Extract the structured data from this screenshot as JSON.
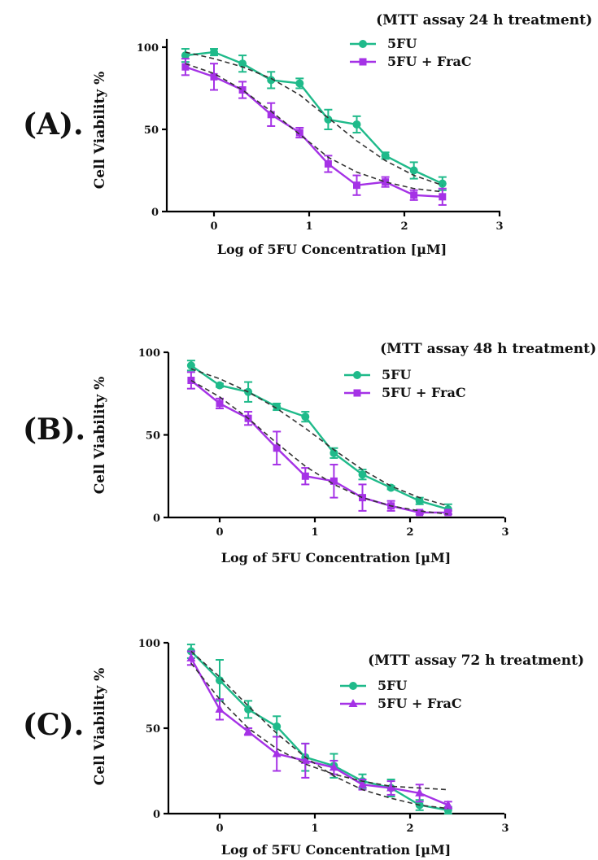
{
  "chart_data": [
    {
      "type": "line",
      "panel_label": "(A).",
      "title": "(MTT assay 24 h treatment)",
      "xlabel": "Log of 5FU Concentration [µM]",
      "ylabel": "Cell Viability %",
      "xlim": [
        -0.5,
        3
      ],
      "ylim": [
        0,
        105
      ],
      "x_ticks": [
        "0",
        "1",
        "2",
        "3"
      ],
      "y_ticks": [
        "0",
        "50",
        "100"
      ],
      "x": [
        -0.3,
        0,
        0.3,
        0.6,
        0.9,
        1.2,
        1.5,
        1.8,
        2.1,
        2.4
      ],
      "series": [
        {
          "name": "5FU",
          "color": "#1fba8a",
          "marker": "circle",
          "values": [
            95,
            97,
            90,
            80,
            78,
            56,
            53,
            34,
            25,
            17
          ],
          "errors": [
            4,
            2,
            5,
            5,
            3,
            6,
            5,
            2,
            5,
            4
          ],
          "fit": [
            97,
            93,
            88,
            81,
            71,
            57,
            43,
            31,
            22,
            16
          ]
        },
        {
          "name": "5FU + FraC",
          "color": "#a532e6",
          "marker": "square",
          "values": [
            88,
            82,
            74,
            59,
            48,
            29,
            16,
            18,
            10,
            9
          ],
          "errors": [
            5,
            8,
            5,
            7,
            3,
            5,
            6,
            3,
            3,
            5
          ],
          "fit": [
            90,
            84,
            74,
            61,
            47,
            33,
            24,
            18,
            14,
            12
          ]
        }
      ]
    },
    {
      "type": "line",
      "panel_label": "(B).",
      "title": "(MTT assay 48 h treatment)",
      "xlabel": "Log of 5FU Concentration [µM]",
      "ylabel": "Cell Viability %",
      "xlim": [
        -0.5,
        3
      ],
      "ylim": [
        0,
        100
      ],
      "x_ticks": [
        "0",
        "1",
        "2",
        "3"
      ],
      "y_ticks": [
        "0",
        "50",
        "100"
      ],
      "x": [
        -0.3,
        0,
        0.3,
        0.6,
        0.9,
        1.2,
        1.5,
        1.8,
        2.1,
        2.4
      ],
      "series": [
        {
          "name": "5FU",
          "color": "#1fba8a",
          "marker": "circle",
          "values": [
            92,
            80,
            76,
            67,
            61,
            39,
            26,
            18,
            10,
            5
          ],
          "errors": [
            3,
            1,
            6,
            2,
            3,
            3,
            3,
            1,
            2,
            3
          ],
          "fit": [
            90,
            84,
            76,
            66,
            54,
            41,
            29,
            19,
            12,
            7
          ]
        },
        {
          "name": "5FU + FraC",
          "color": "#a532e6",
          "marker": "square",
          "values": [
            83,
            69,
            60,
            42,
            25,
            22,
            12,
            7,
            3,
            3
          ],
          "errors": [
            5,
            3,
            4,
            10,
            5,
            10,
            8,
            3,
            1,
            1
          ],
          "fit": [
            83,
            73,
            60,
            45,
            31,
            20,
            12,
            7,
            4,
            2
          ]
        }
      ]
    },
    {
      "type": "line",
      "panel_label": "(C).",
      "title": "(MTT assay 72 h treatment)",
      "xlabel": "Log of 5FU Concentration [µM]",
      "ylabel": "Cell Viability %",
      "xlim": [
        -0.5,
        3
      ],
      "ylim": [
        0,
        100
      ],
      "x_ticks": [
        "0",
        "1",
        "2",
        "3"
      ],
      "y_ticks": [
        "0",
        "50",
        "100"
      ],
      "x": [
        -0.3,
        0,
        0.3,
        0.6,
        0.9,
        1.2,
        1.5,
        1.8,
        2.1,
        2.4
      ],
      "series": [
        {
          "name": "5FU",
          "color": "#1fba8a",
          "marker": "circle",
          "values": [
            95,
            78,
            61,
            51,
            33,
            28,
            19,
            15,
            5,
            2
          ],
          "errors": [
            4,
            12,
            5,
            6,
            8,
            7,
            4,
            5,
            3,
            2
          ],
          "fit": [
            95,
            80,
            63,
            47,
            33,
            22,
            14,
            9,
            5,
            3
          ]
        },
        {
          "name": "5FU + FraC",
          "color": "#a532e6",
          "marker": "triangle",
          "values": [
            91,
            61,
            48,
            35,
            31,
            27,
            17,
            15,
            12,
            5
          ],
          "errors": [
            4,
            6,
            2,
            10,
            10,
            4,
            3,
            4,
            5,
            2
          ],
          "fit": [
            88,
            67,
            50,
            38,
            29,
            23,
            19,
            16,
            15,
            14
          ]
        }
      ]
    }
  ]
}
